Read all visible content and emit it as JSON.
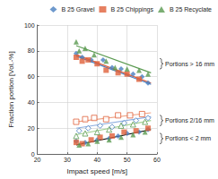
{
  "chart_data": {
    "type": "scatter",
    "x_label": "Impact speed [m/s]",
    "y_label": "Fraction portion [Vol.-%]",
    "xlim": [
      20,
      60
    ],
    "xticks": [
      20,
      30,
      40,
      50,
      60
    ],
    "ylim": [
      0,
      100
    ],
    "yticks": [
      0,
      20,
      40,
      60,
      80,
      100
    ],
    "grid": true,
    "legend": "top right",
    "series": [
      {
        "name": "B 25 Gravel",
        "color": "#4a7fc1",
        "marker": "diamond",
        "x": [
          33,
          35,
          38,
          42,
          45,
          48,
          52,
          55,
          57,
          33,
          36,
          40,
          44,
          47,
          50,
          54,
          57
        ],
        "values": [
          78,
          75,
          73,
          73,
          67,
          66,
          62,
          60,
          55,
          10,
          9,
          11,
          12,
          14,
          16,
          17,
          19
        ]
      },
      {
        "name": "B 25 Chippings",
        "color": "#e0603a",
        "marker": "square",
        "x": [
          33,
          35,
          37,
          40,
          43,
          47,
          50,
          54,
          33,
          35,
          38,
          41,
          45,
          49,
          53,
          57
        ],
        "values": [
          75,
          72,
          73,
          70,
          65,
          63,
          62,
          58,
          9,
          8,
          11,
          13,
          14,
          17,
          18,
          20
        ]
      },
      {
        "name": "B 25 Recyclate",
        "color": "#5a9a50",
        "marker": "triangle",
        "x": [
          33,
          34,
          36,
          39,
          43,
          46,
          50,
          54,
          57,
          34,
          37,
          40,
          44,
          48,
          52,
          56
        ],
        "values": [
          87,
          80,
          82,
          77,
          72,
          67,
          66,
          65,
          62,
          7,
          8,
          10,
          11,
          13,
          15,
          17
        ]
      },
      {
        "name": "B 25 Gravel",
        "color": "#4a7fc1",
        "marker": "diamond-open",
        "x": [
          34,
          37,
          41,
          45,
          49,
          53,
          57
        ],
        "values": [
          18,
          20,
          22,
          21,
          24,
          26,
          28
        ]
      },
      {
        "name": "B 25 Chippings",
        "color": "#e0603a",
        "marker": "square-open",
        "x": [
          33,
          36,
          39,
          43,
          47,
          51,
          55
        ],
        "values": [
          25,
          27,
          28,
          27,
          30,
          30,
          31
        ]
      },
      {
        "name": "B 25 Recyclate",
        "color": "#5a9a50",
        "marker": "triangle-open",
        "x": [
          33,
          36,
          40,
          44,
          48,
          52,
          56
        ],
        "values": [
          14,
          16,
          17,
          19,
          22,
          23,
          25
        ]
      }
    ],
    "trend_lines": [
      {
        "color": "#5a9a50",
        "line_style": "solid",
        "x": [
          33,
          58
        ],
        "values": [
          84,
          63
        ]
      },
      {
        "color": "#e0603a",
        "line_style": "solid",
        "x": [
          33,
          58
        ],
        "values": [
          77,
          55
        ]
      },
      {
        "color": "#4a7fc1",
        "line_style": "solid",
        "x": [
          33,
          58
        ],
        "values": [
          76,
          54
        ]
      },
      {
        "color": "#f0a080",
        "line_style": "solid",
        "x": [
          33,
          58
        ],
        "values": [
          25,
          32
        ]
      },
      {
        "color": "#90b0e0",
        "line_style": "solid",
        "x": [
          33,
          58
        ],
        "values": [
          20,
          29
        ]
      },
      {
        "color": "#a0d090",
        "line_style": "solid",
        "x": [
          33,
          58
        ],
        "values": [
          15,
          26
        ]
      },
      {
        "color": "#000000",
        "line_style": "solid",
        "x": [
          33,
          58
        ],
        "values": [
          7,
          19
        ]
      }
    ],
    "annotations": [
      {
        "text": "Portions > 16 mm",
        "y": 70
      },
      {
        "text": "Portions 2/16 mm",
        "y": 26
      },
      {
        "text": "Portions < 2 mm",
        "y": 12
      }
    ]
  }
}
